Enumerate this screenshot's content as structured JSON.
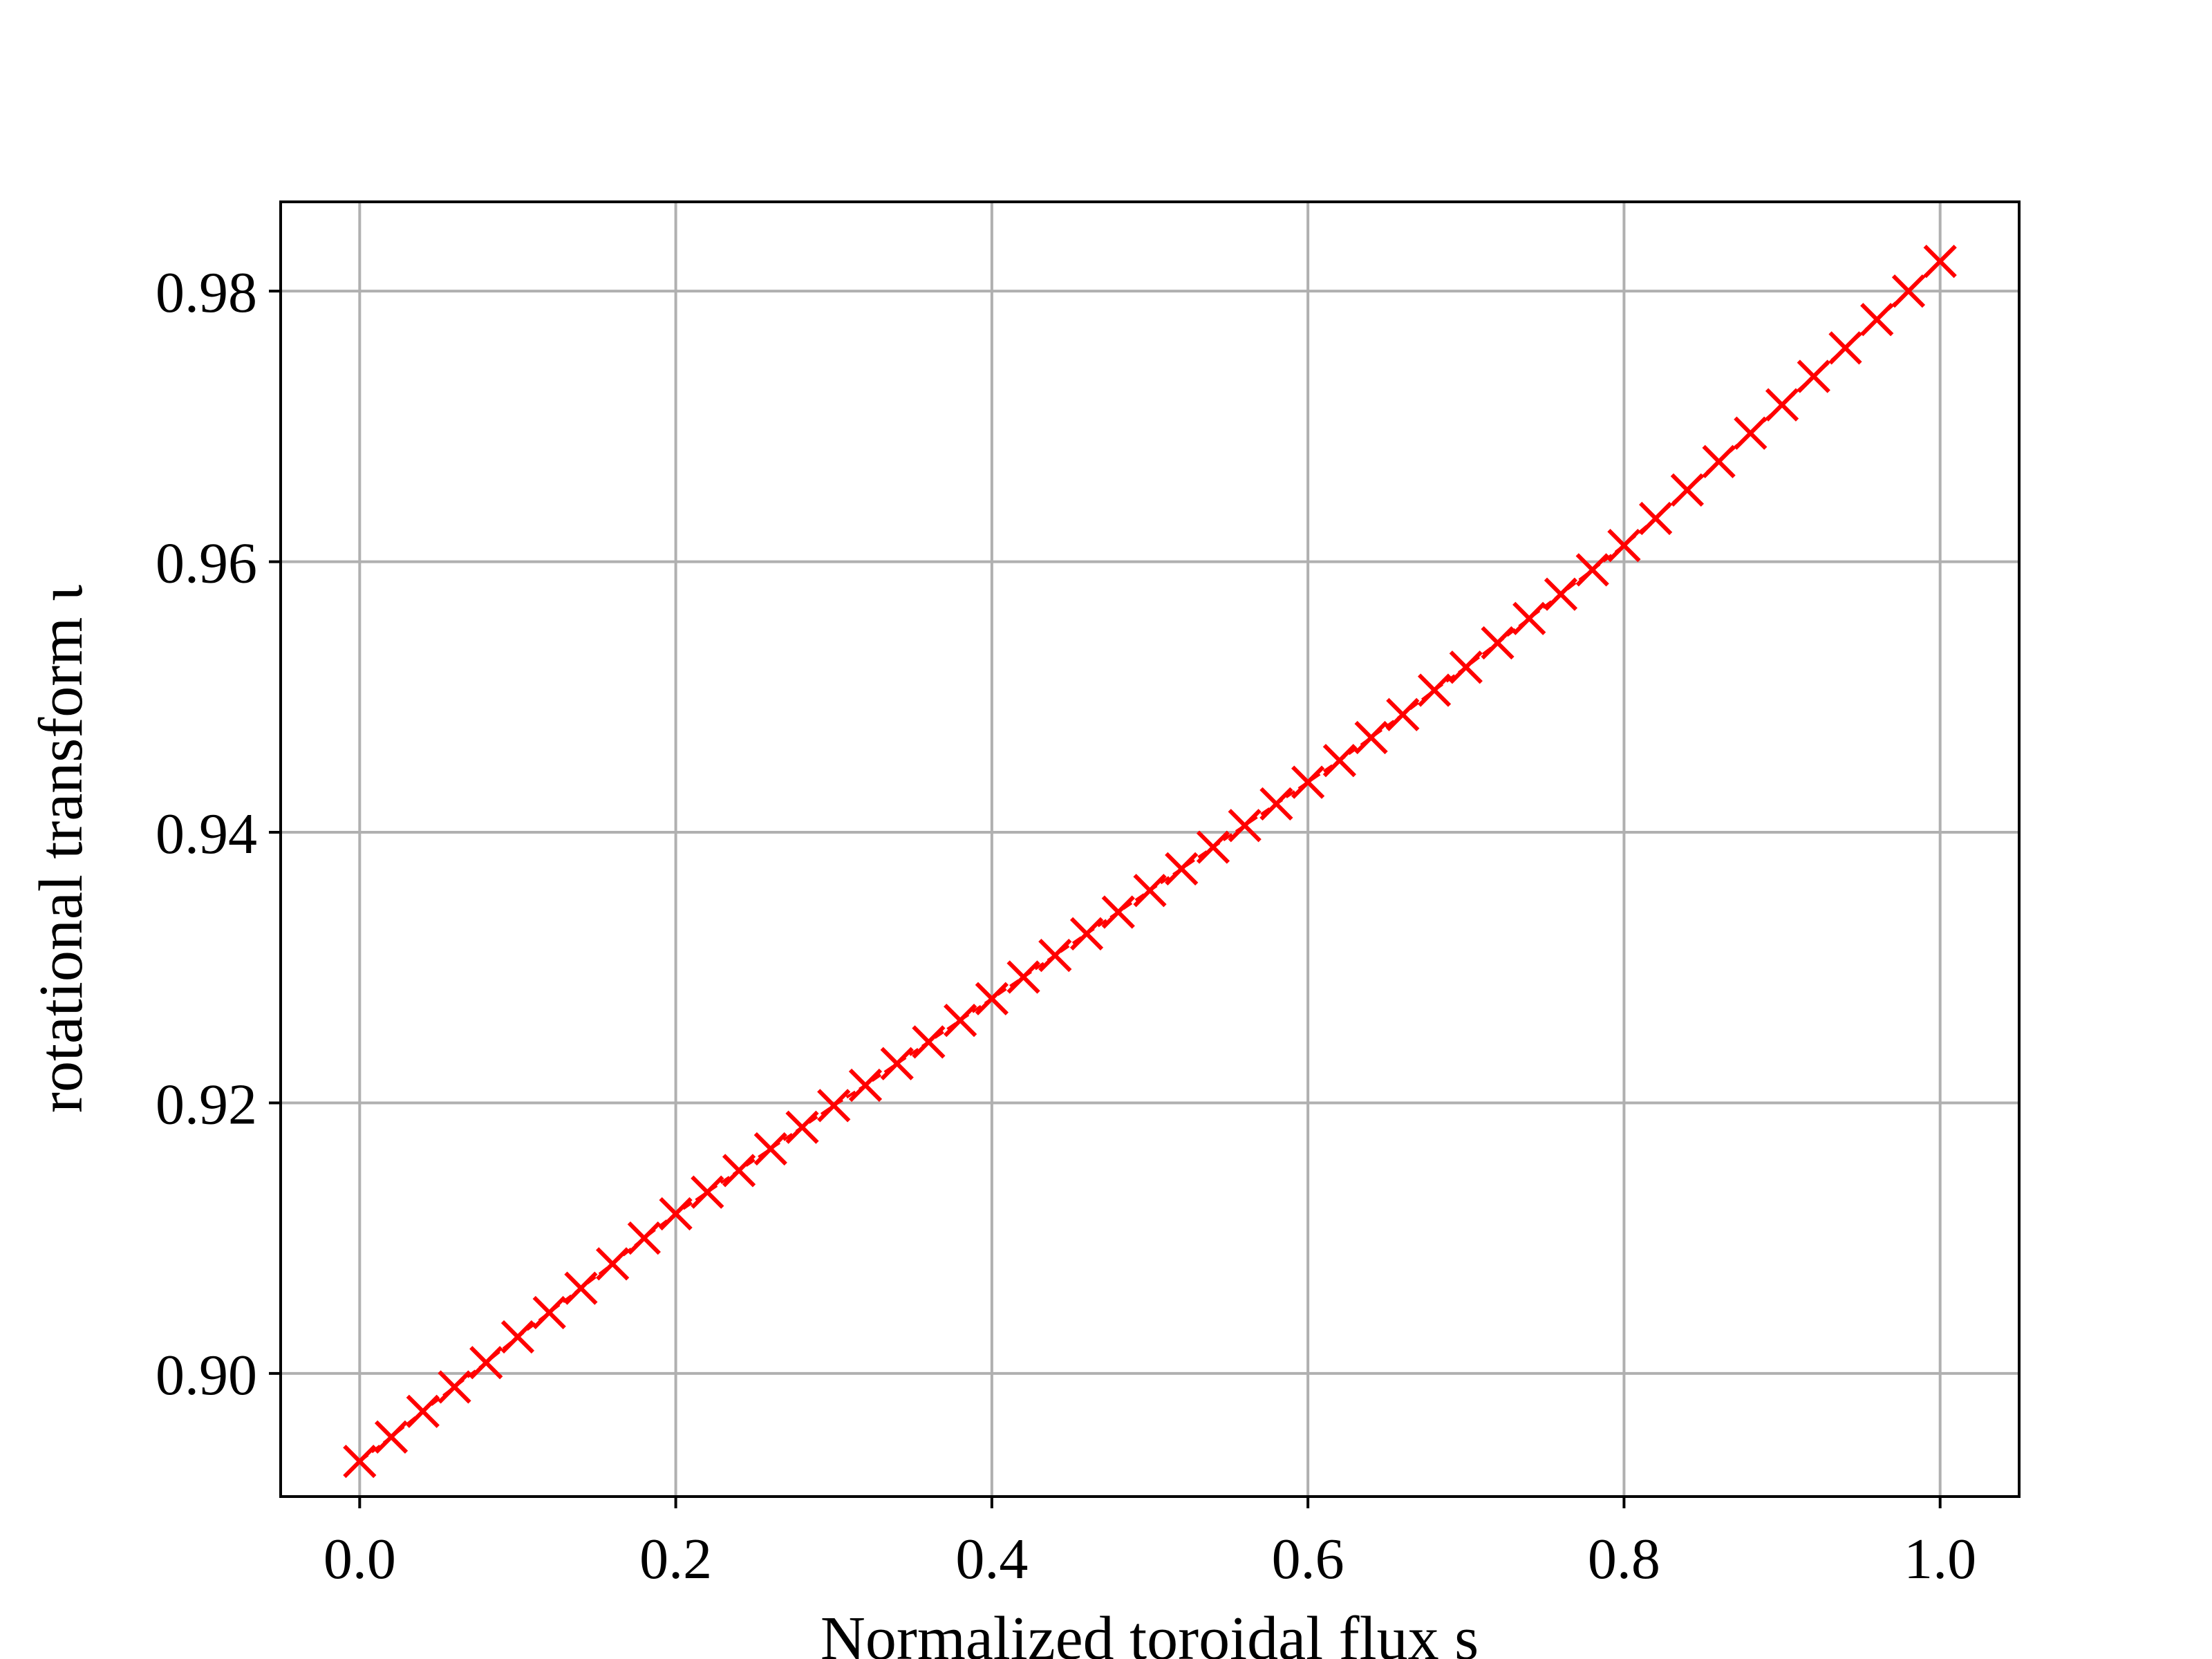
{
  "chart_data": {
    "type": "line",
    "x_label": "Normalized toroidal flux s",
    "y_label": "rotational transform ι",
    "x": [
      0.0,
      0.02,
      0.04,
      0.06,
      0.08,
      0.1,
      0.12,
      0.14,
      0.16,
      0.18,
      0.2,
      0.22,
      0.24,
      0.26,
      0.28,
      0.3,
      0.32,
      0.34,
      0.36,
      0.38,
      0.4,
      0.42,
      0.44,
      0.46,
      0.48,
      0.5,
      0.52,
      0.54,
      0.56,
      0.58,
      0.6,
      0.62,
      0.64,
      0.66,
      0.68,
      0.7,
      0.72,
      0.74,
      0.76,
      0.78,
      0.8,
      0.82,
      0.84,
      0.86,
      0.88,
      0.9,
      0.92,
      0.94,
      0.96,
      0.98,
      1.0
    ],
    "values": [
      0.8935,
      0.8953,
      0.8972,
      0.899,
      0.9008,
      0.9027,
      0.9045,
      0.9063,
      0.9081,
      0.91,
      0.9118,
      0.9134,
      0.915,
      0.9166,
      0.9182,
      0.9198,
      0.9213,
      0.9229,
      0.9245,
      0.9261,
      0.9277,
      0.9293,
      0.9309,
      0.9325,
      0.9341,
      0.9357,
      0.9373,
      0.9389,
      0.9405,
      0.9421,
      0.9437,
      0.9453,
      0.947,
      0.9487,
      0.9505,
      0.9522,
      0.954,
      0.9558,
      0.9576,
      0.9594,
      0.9612,
      0.9632,
      0.9653,
      0.9674,
      0.9695,
      0.9716,
      0.9737,
      0.9758,
      0.9779,
      0.98,
      0.9822
    ],
    "color": "#ff0000",
    "marker": "x",
    "line_style": "dashed",
    "xlim": [
      -0.05,
      1.05
    ],
    "xticks": [
      {
        "value": 0,
        "label": "0.0"
      },
      0.2,
      0.4,
      0.6,
      0.8,
      {
        "value": 1,
        "label": "1.0"
      }
    ],
    "ylim": [
      0.8909,
      0.9866
    ],
    "yticks": [
      {
        "value": 0.9,
        "label": "0.90"
      },
      0.92,
      0.94,
      0.96,
      0.98
    ],
    "grid": true
  }
}
